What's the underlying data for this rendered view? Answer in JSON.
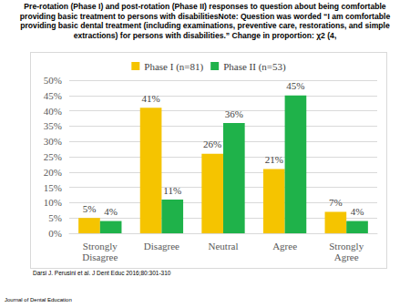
{
  "chart_data": {
    "type": "bar",
    "title": "Pre-rotation (Phase I) and post-rotation (Phase II) responses to question about being comfortable providing basic treatment to persons with disabilitiesNote: Question was worded “I am comfortable providing basic dental treatment (including examinations, preventive care, restorations, and simple extractions) for persons with disabilities.” Change in proportion: χ2 (4,",
    "annotations": [
      "Darsi J. Perusini et al. J Dent Educ 2016;80:301-310",
      "Journal of Dental Education"
    ],
    "categories": [
      "Strongly Disagree",
      "Disagree",
      "Neutral",
      "Agree",
      "Strongly Agree"
    ],
    "series": [
      {
        "name": "Phase I (n=81)",
        "color": "#f5c400",
        "values": [
          5,
          41,
          26,
          21,
          7
        ],
        "value_labels": [
          "5%",
          "41%",
          "26%",
          "21%",
          "7%"
        ]
      },
      {
        "name": "Phase II (n=53)",
        "color": "#1fb24a",
        "values": [
          4,
          11,
          36,
          45,
          4
        ],
        "value_labels": [
          "4%",
          "11%",
          "36%",
          "45%",
          "4%"
        ]
      }
    ],
    "ylim": [
      0,
      50
    ],
    "yticks": [
      {
        "value": 0,
        "label": "0%"
      },
      {
        "value": 5,
        "label": "5%"
      },
      {
        "value": 10,
        "label": "10%"
      },
      {
        "value": 15,
        "label": "15%"
      },
      {
        "value": 20,
        "label": "20%"
      },
      {
        "value": 25,
        "label": "25%"
      },
      {
        "value": 30,
        "label": "30%"
      },
      {
        "value": 35,
        "label": "35%"
      },
      {
        "value": 40,
        "label": "40%"
      },
      {
        "value": 45,
        "label": "45%"
      },
      {
        "value": 50,
        "label": "50%"
      }
    ],
    "grid": true,
    "legend": "top",
    "data_labels": true
  }
}
